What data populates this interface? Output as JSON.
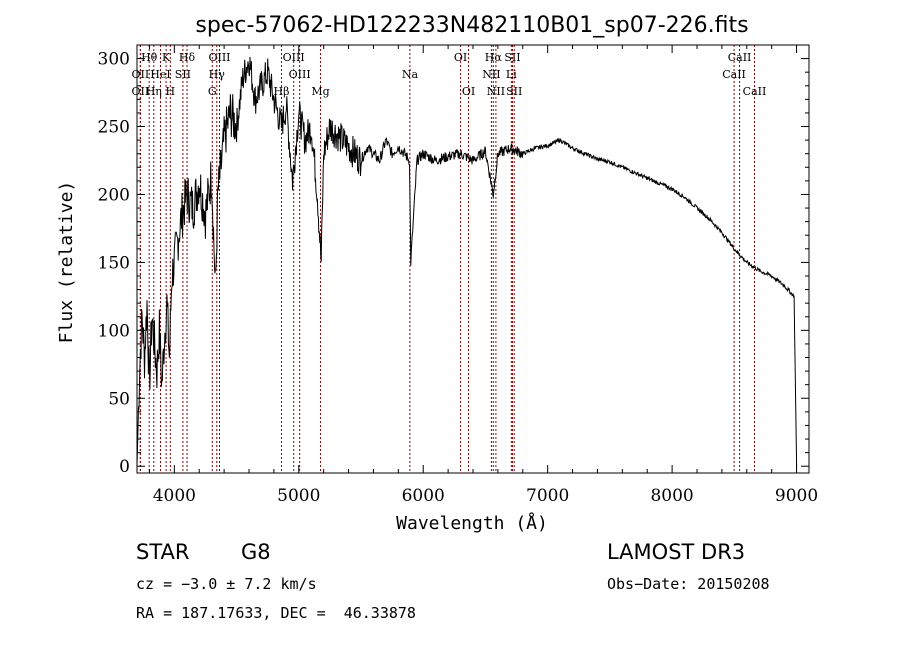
{
  "chart_data": {
    "type": "line",
    "title": "spec-57062-HD122233N482110B01_sp07-226.fits",
    "xlabel": "Wavelength (Å)",
    "ylabel": "Flux (relative)",
    "xlim": [
      3700,
      9100
    ],
    "ylim": [
      -5,
      310
    ],
    "xticks": [
      4000,
      5000,
      6000,
      7000,
      8000,
      9000
    ],
    "yticks": [
      0,
      50,
      100,
      150,
      200,
      250,
      300
    ],
    "grid": false,
    "legend": "none",
    "series": [
      {
        "name": "flux",
        "x": [
          3700,
          3720,
          3740,
          3760,
          3780,
          3800,
          3820,
          3840,
          3860,
          3880,
          3900,
          3920,
          3940,
          3960,
          3980,
          4000,
          4050,
          4100,
          4150,
          4200,
          4250,
          4300,
          4330,
          4350,
          4400,
          4450,
          4500,
          4550,
          4600,
          4650,
          4700,
          4750,
          4800,
          4860,
          4900,
          4950,
          5000,
          5050,
          5100,
          5150,
          5180,
          5200,
          5250,
          5300,
          5350,
          5400,
          5450,
          5500,
          5550,
          5600,
          5650,
          5700,
          5750,
          5800,
          5850,
          5890,
          5900,
          5950,
          6000,
          6100,
          6200,
          6300,
          6400,
          6500,
          6563,
          6600,
          6700,
          6800,
          6900,
          7000,
          7100,
          7200,
          7300,
          7400,
          7500,
          7600,
          7700,
          7800,
          7900,
          8000,
          8100,
          8200,
          8300,
          8400,
          8500,
          8600,
          8700,
          8800,
          8900,
          8980,
          9000
        ],
        "values": [
          0,
          70,
          110,
          80,
          120,
          60,
          110,
          90,
          70,
          100,
          60,
          95,
          120,
          80,
          140,
          150,
          180,
          200,
          190,
          210,
          185,
          215,
          130,
          200,
          240,
          260,
          250,
          285,
          300,
          270,
          280,
          290,
          270,
          250,
          265,
          210,
          260,
          240,
          250,
          200,
          150,
          230,
          250,
          245,
          240,
          235,
          230,
          225,
          235,
          230,
          225,
          240,
          230,
          235,
          230,
          225,
          150,
          225,
          230,
          225,
          228,
          230,
          225,
          232,
          200,
          230,
          234,
          230,
          234,
          236,
          240,
          234,
          230,
          226,
          224,
          220,
          216,
          212,
          208,
          204,
          198,
          190,
          182,
          172,
          160,
          150,
          144,
          140,
          133,
          125,
          0
        ]
      }
    ],
    "lines": [
      {
        "name": "Hθ",
        "wl": 3798,
        "row": 0
      },
      {
        "name": "OII",
        "wl": 3727,
        "row": 1
      },
      {
        "name": "OII",
        "wl": 3727,
        "row": 2
      },
      {
        "name": "K",
        "wl": 3934,
        "row": 0
      },
      {
        "name": "HeI",
        "wl": 3889,
        "row": 1
      },
      {
        "name": "Hη",
        "wl": 3835,
        "row": 2
      },
      {
        "name": "Hδ",
        "wl": 4102,
        "row": 0
      },
      {
        "name": "SII",
        "wl": 4069,
        "row": 1
      },
      {
        "name": "H",
        "wl": 3968,
        "row": 2
      },
      {
        "name": "OIII",
        "wl": 4363,
        "row": 0
      },
      {
        "name": "Hγ",
        "wl": 4341,
        "row": 1
      },
      {
        "name": "G",
        "wl": 4305,
        "row": 2
      },
      {
        "name": "OIII",
        "wl": 4959,
        "row": 0
      },
      {
        "name": "OIII",
        "wl": 5007,
        "row": 1
      },
      {
        "name": "Hβ",
        "wl": 4861,
        "row": 2
      },
      {
        "name": "Mg",
        "wl": 5175,
        "row": 2
      },
      {
        "name": "Na",
        "wl": 5893,
        "row": 1
      },
      {
        "name": "OI",
        "wl": 6300,
        "row": 0
      },
      {
        "name": "OI",
        "wl": 6364,
        "row": 2
      },
      {
        "name": "Hα",
        "wl": 6563,
        "row": 0
      },
      {
        "name": "NII",
        "wl": 6548,
        "row": 1
      },
      {
        "name": "NII",
        "wl": 6584,
        "row": 2
      },
      {
        "name": "SII",
        "wl": 6717,
        "row": 0
      },
      {
        "name": "Li",
        "wl": 6708,
        "row": 1
      },
      {
        "name": "SII",
        "wl": 6731,
        "row": 2
      },
      {
        "name": "CaII",
        "wl": 8542,
        "row": 0
      },
      {
        "name": "CaII",
        "wl": 8498,
        "row": 1
      },
      {
        "name": "CaII",
        "wl": 8662,
        "row": 2
      }
    ],
    "line_color": "#8b0000"
  },
  "info": {
    "class": "STAR",
    "subclass": "G8",
    "survey": "LAMOST DR3",
    "cz": "cz = −3.0 ± 7.2 km/s",
    "obs_date": "Obs−Date: 20150208",
    "radec": "RA = 187.17633, DEC =  46.33878"
  }
}
